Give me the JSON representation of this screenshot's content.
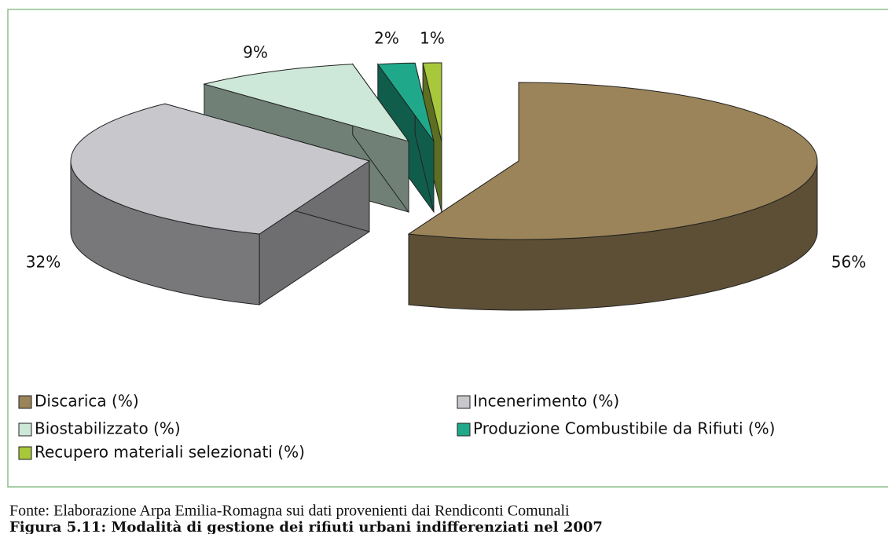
{
  "chart_data": {
    "type": "pie",
    "categories": [
      "Discarica (%)",
      "Incenerimento (%)",
      "Biostabilizzato (%)",
      "Produzione Combustibile da Rifiuti (%)",
      "Recupero materiali selezionati (%)"
    ],
    "values": [
      56,
      32,
      9,
      2,
      1
    ],
    "value_labels": [
      "56%",
      "32%",
      "9%",
      "2%",
      "1%"
    ],
    "colors": [
      "#9b8459",
      "#c8c8cc",
      "#cde8d8",
      "#1fa98a",
      "#a8c83c"
    ],
    "legend": "bottom",
    "source": "Fonte: Elaborazione Arpa Emilia-Romagna sui dati provenienti dai Rendiconti Comunali",
    "caption": "Figura 5.11: Modalità di gestione dei rifiuti urbani indifferenziati nel 2007"
  }
}
